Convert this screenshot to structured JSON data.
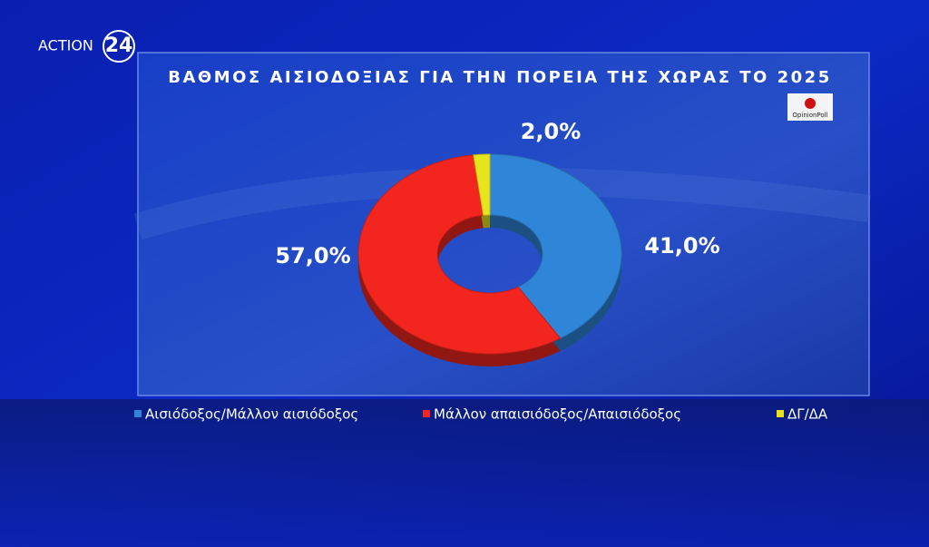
{
  "channel_logo": "ACTION",
  "channel_number": "24",
  "source": "OpinionPoll",
  "chart_data": {
    "type": "donut",
    "title": "ΒΑΘΜΟΣ ΑΙΣΙΟΔΟΞΙΑΣ ΓΙΑ ΤΗΝ ΠΟΡΕΙΑ ΤΗΣ ΧΩΡΑΣ ΤΟ 2025",
    "categories": [
      "Αισιόδοξος/Μάλλον αισιόδοξος",
      "Μάλλον απαισιόδοξος/Απαισιόδοξος",
      "ΔΓ/ΔΑ"
    ],
    "values": [
      41.0,
      57.0,
      2.0
    ],
    "value_labels": [
      "41,0%",
      "57,0%",
      "2,0%"
    ],
    "colors": [
      "#2f86d8",
      "#f2261e",
      "#e6e41c"
    ],
    "legend": "bottom"
  }
}
